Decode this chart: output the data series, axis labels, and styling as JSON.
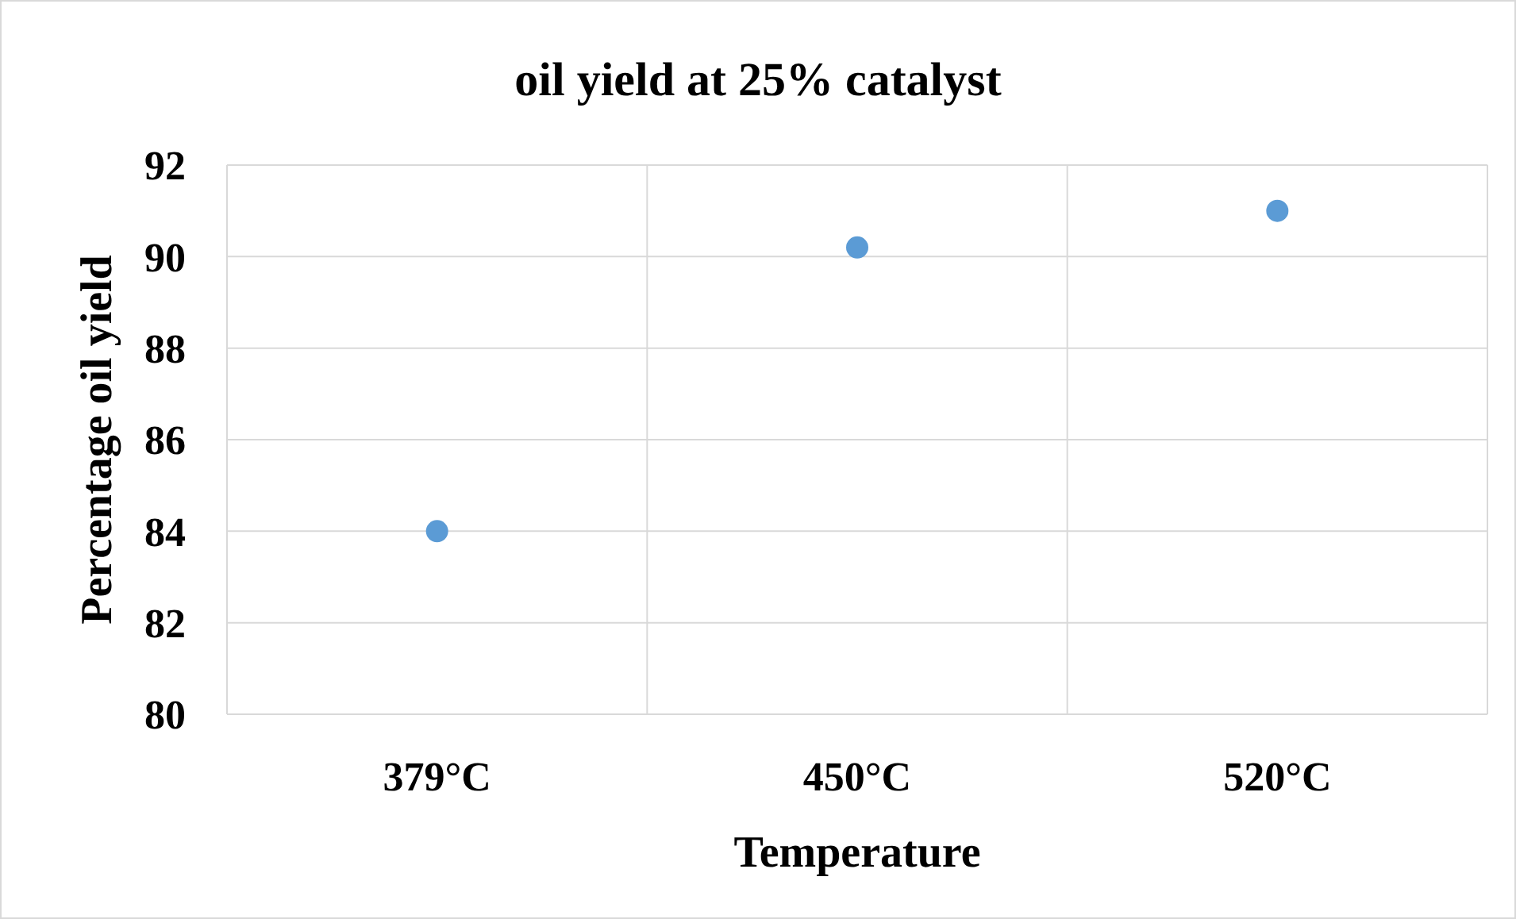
{
  "chart_data": {
    "type": "scatter",
    "title": "oil yield at 25% catalyst",
    "xlabel": "Temperature",
    "ylabel": "Percentage oil yield",
    "categories": [
      "379°C",
      "450°C",
      "520°C"
    ],
    "series": [
      {
        "color": "#5b9bd5",
        "values": [
          84.0,
          90.2,
          91.0
        ]
      }
    ],
    "ylim": [
      80,
      92
    ],
    "yticks": [
      80,
      82,
      84,
      86,
      88,
      90,
      92
    ],
    "grid": true,
    "marker": "circle"
  }
}
